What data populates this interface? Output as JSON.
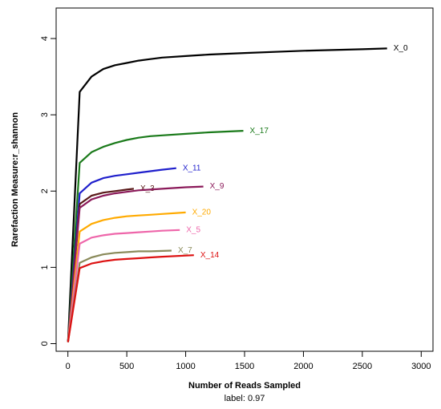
{
  "chart_data": {
    "type": "line",
    "xlabel": "Number of Reads Sampled",
    "subtitle": "label: 0.97",
    "ylabel": "Rarefaction Measure:r_shannon",
    "xlim": [
      -100,
      3100
    ],
    "ylim": [
      -0.1,
      4.4
    ],
    "x_ticks": [
      0,
      500,
      1000,
      1500,
      2000,
      2500,
      3000
    ],
    "y_ticks": [
      0,
      1,
      2,
      3,
      4
    ],
    "grid": false,
    "series": [
      {
        "name": "X_0",
        "color": "#000000",
        "x": [
          1,
          100,
          200,
          300,
          400,
          500,
          600,
          700,
          800,
          1000,
          1200,
          1500,
          2000,
          2500,
          2710
        ],
        "y": [
          0.02,
          3.3,
          3.5,
          3.6,
          3.65,
          3.68,
          3.71,
          3.73,
          3.75,
          3.77,
          3.79,
          3.81,
          3.84,
          3.86,
          3.87
        ]
      },
      {
        "name": "X_17",
        "color": "#1a7a1a",
        "x": [
          1,
          100,
          200,
          300,
          400,
          500,
          600,
          700,
          800,
          1000,
          1200,
          1490
        ],
        "y": [
          0.02,
          2.37,
          2.51,
          2.58,
          2.63,
          2.67,
          2.7,
          2.72,
          2.73,
          2.75,
          2.77,
          2.79
        ]
      },
      {
        "name": "X_11",
        "color": "#1f1fcc",
        "x": [
          1,
          100,
          200,
          300,
          400,
          500,
          600,
          700,
          800,
          920
        ],
        "y": [
          0.02,
          1.97,
          2.11,
          2.17,
          2.2,
          2.22,
          2.24,
          2.26,
          2.28,
          2.3
        ]
      },
      {
        "name": "X_3",
        "color": "#5a1a1a",
        "x": [
          1,
          100,
          200,
          300,
          400,
          500,
          560
        ],
        "y": [
          0.02,
          1.83,
          1.94,
          1.98,
          2.0,
          2.02,
          2.03
        ]
      },
      {
        "name": "X_9",
        "color": "#8b1a5a",
        "x": [
          1,
          100,
          200,
          300,
          400,
          500,
          600,
          700,
          800,
          1000,
          1150
        ],
        "y": [
          0.02,
          1.78,
          1.89,
          1.94,
          1.97,
          1.99,
          2.01,
          2.02,
          2.03,
          2.05,
          2.06
        ]
      },
      {
        "name": "X_20",
        "color": "#ffaa00",
        "x": [
          1,
          100,
          200,
          300,
          400,
          500,
          600,
          700,
          800,
          1000
        ],
        "y": [
          0.02,
          1.47,
          1.57,
          1.62,
          1.65,
          1.67,
          1.68,
          1.69,
          1.7,
          1.72
        ]
      },
      {
        "name": "X_5",
        "color": "#ee66aa",
        "x": [
          1,
          100,
          200,
          300,
          400,
          500,
          600,
          700,
          800,
          950
        ],
        "y": [
          0.02,
          1.31,
          1.39,
          1.42,
          1.44,
          1.45,
          1.46,
          1.47,
          1.48,
          1.49
        ]
      },
      {
        "name": "X_7",
        "color": "#8a8a5a",
        "x": [
          1,
          100,
          200,
          300,
          400,
          500,
          600,
          700,
          880
        ],
        "y": [
          0.02,
          1.06,
          1.13,
          1.17,
          1.19,
          1.2,
          1.21,
          1.21,
          1.22
        ]
      },
      {
        "name": "X_14",
        "color": "#dd1111",
        "x": [
          1,
          100,
          200,
          300,
          400,
          500,
          600,
          700,
          800,
          1070
        ],
        "y": [
          0.02,
          0.99,
          1.05,
          1.08,
          1.1,
          1.11,
          1.12,
          1.13,
          1.14,
          1.16
        ]
      }
    ]
  }
}
